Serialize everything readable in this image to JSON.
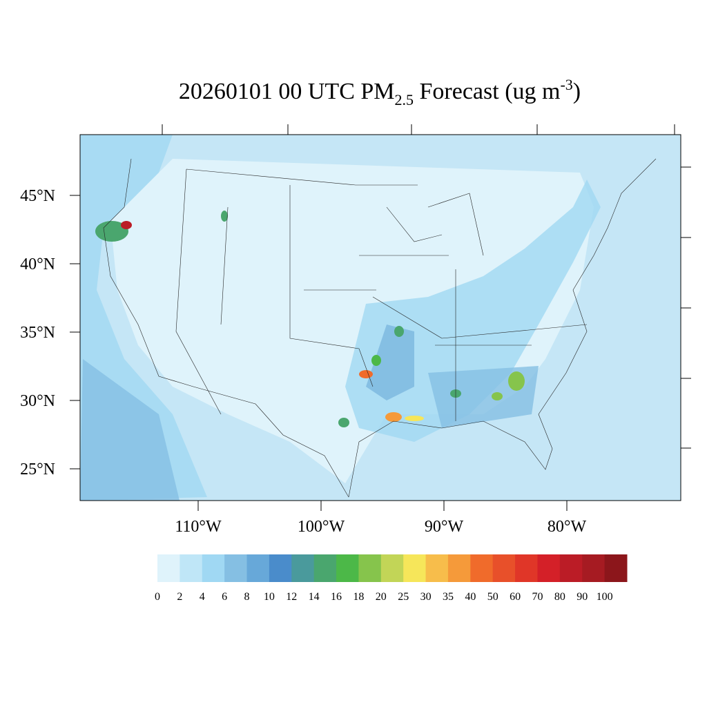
{
  "title": {
    "main": "20260101 00 UTC PM",
    "subscript": "2.5",
    "rest": " Forecast (ug m",
    "superscript": "-3",
    "close": ")"
  },
  "map": {
    "lat_ticks": [
      {
        "value": 45,
        "label": "45°N"
      },
      {
        "value": 40,
        "label": "40°N"
      },
      {
        "value": 35,
        "label": "35°N"
      },
      {
        "value": 30,
        "label": "30°N"
      },
      {
        "value": 25,
        "label": "25°N"
      }
    ],
    "lon_ticks": [
      {
        "value": -110,
        "label": "110°W"
      },
      {
        "value": -100,
        "label": "100°W"
      },
      {
        "value": -90,
        "label": "90°W"
      },
      {
        "value": -80,
        "label": "80°W"
      }
    ]
  },
  "colorbar": {
    "levels": [
      0,
      2,
      4,
      6,
      8,
      10,
      12,
      14,
      16,
      18,
      20,
      25,
      30,
      35,
      40,
      50,
      60,
      70,
      80,
      90,
      100
    ],
    "colors": [
      "#dff3fb",
      "#bfe6f7",
      "#a0d8f3",
      "#85bfe3",
      "#67a8d9",
      "#4a8ccb",
      "#4a9a9c",
      "#4aa66e",
      "#4cb848",
      "#86c44c",
      "#c2d557",
      "#f6e65a",
      "#f7bd4b",
      "#f59a3a",
      "#f06b2b",
      "#e8502a",
      "#e03628",
      "#d42028",
      "#bb1c26",
      "#a61b22",
      "#8c161b"
    ]
  }
}
